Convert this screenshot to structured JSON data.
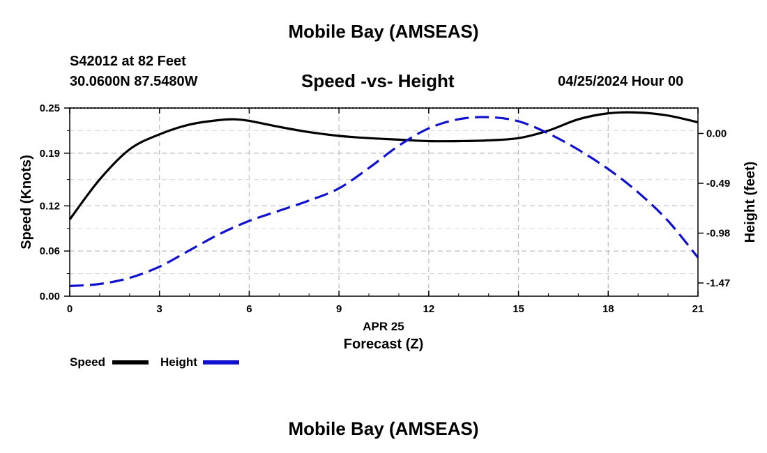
{
  "page": {
    "top_title": "Mobile Bay (AMSEAS)",
    "bottom_title": "Mobile Bay (AMSEAS)",
    "station": "S42012 at 82 Feet",
    "coords": "30.0600N  87.5480W",
    "chart_title": "Speed -vs- Height",
    "datetime": "04/25/2024 Hour 00"
  },
  "legend": {
    "speed_label": "Speed",
    "height_label": "Height"
  },
  "colors": {
    "speed": "#000000",
    "height": "#1010d0",
    "grid": "#c0c0c0"
  },
  "chart_data": {
    "type": "line",
    "title": "Speed -vs- Height",
    "xlabel": "Forecast (Z)",
    "xlabel_date": "APR 25",
    "x_ticks": [
      0,
      3,
      6,
      9,
      12,
      15,
      18,
      21
    ],
    "xlim": [
      0,
      21
    ],
    "ylabel_left": "Speed (Knots)",
    "ylim_left": [
      0,
      0.25
    ],
    "y_ticks_left": [
      0.0,
      0.06,
      0.12,
      0.19,
      0.25
    ],
    "y_tick_labels_left": [
      "0.00",
      "0.06",
      "0.12",
      "0.19",
      "0.25"
    ],
    "ylabel_right": "Height (feet)",
    "ylim_right": [
      -1.6,
      0.25
    ],
    "y_ticks_right": [
      -1.47,
      -0.98,
      -0.49,
      0.0
    ],
    "y_tick_labels_right": [
      "-1.47",
      "-0.98",
      "-0.49",
      "0.00"
    ],
    "grid": true,
    "legend_position": "bottom-left",
    "series": [
      {
        "name": "Speed",
        "axis": "left",
        "style": "solid",
        "x": [
          0,
          1,
          2,
          3,
          4,
          5,
          5.5,
          6,
          7,
          8,
          9,
          10,
          11,
          12,
          13,
          14,
          15,
          16,
          17,
          18,
          19,
          20,
          21
        ],
        "values": [
          0.102,
          0.155,
          0.195,
          0.215,
          0.228,
          0.234,
          0.235,
          0.233,
          0.225,
          0.218,
          0.213,
          0.21,
          0.208,
          0.206,
          0.206,
          0.207,
          0.21,
          0.22,
          0.235,
          0.243,
          0.244,
          0.24,
          0.231
        ]
      },
      {
        "name": "Height",
        "axis": "right",
        "style": "dashed",
        "x": [
          0,
          1,
          2,
          3,
          4,
          5,
          6,
          7,
          8,
          9,
          10,
          11,
          12,
          13,
          14,
          15,
          16,
          17,
          18,
          19,
          20,
          21
        ],
        "values": [
          -1.5,
          -1.48,
          -1.42,
          -1.31,
          -1.15,
          -0.99,
          -0.86,
          -0.76,
          -0.66,
          -0.54,
          -0.34,
          -0.12,
          0.05,
          0.14,
          0.16,
          0.12,
          0.0,
          -0.16,
          -0.35,
          -0.58,
          -0.86,
          -1.22
        ]
      }
    ]
  }
}
